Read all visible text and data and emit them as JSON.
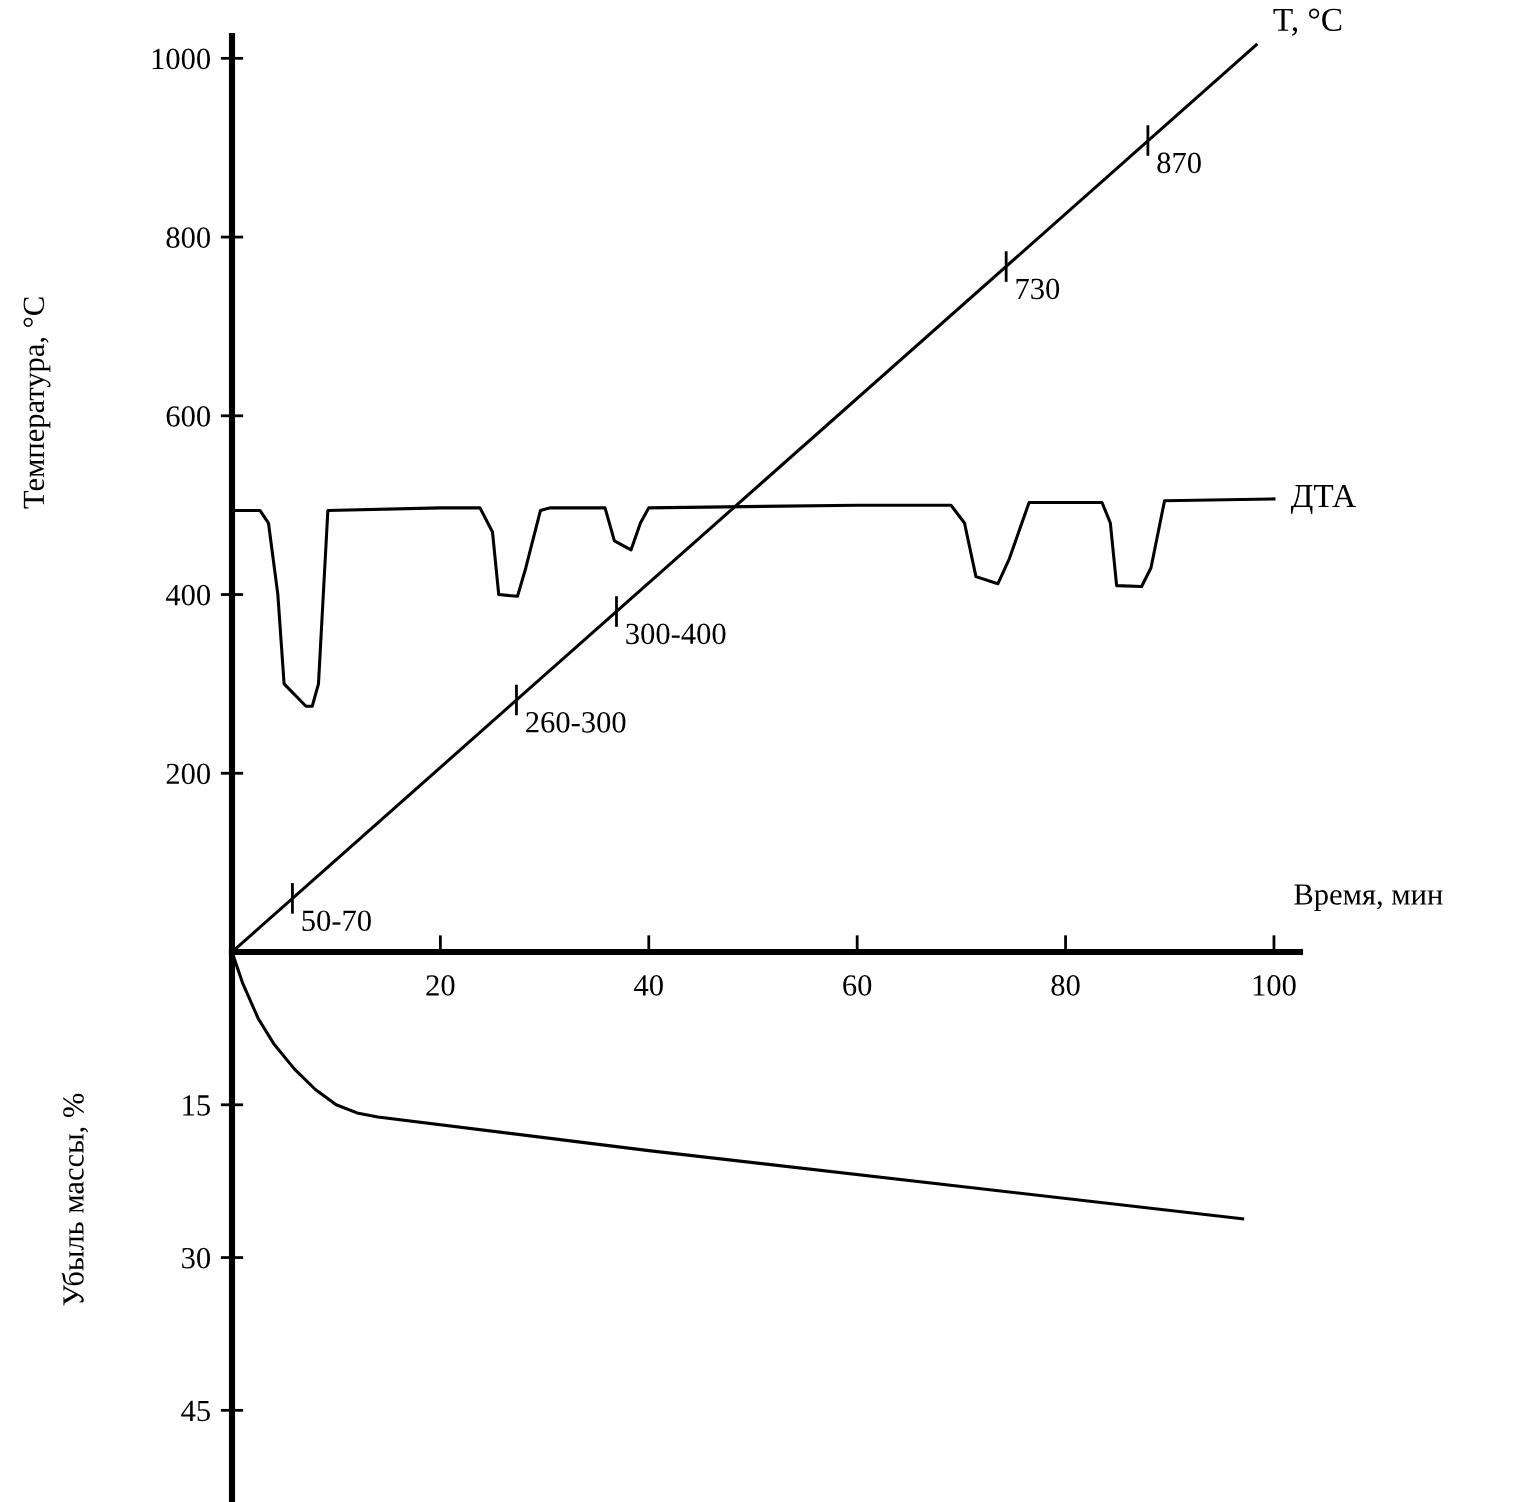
{
  "chart_data": [
    {
      "type": "line",
      "xlabel": "Время, мин",
      "ylabel": "Температура, °C",
      "xlim": [
        0,
        102.5
      ],
      "xticks": [
        20,
        40,
        60,
        80,
        100
      ],
      "ylim": [
        0,
        1025
      ],
      "yticks": [
        200,
        400,
        600,
        800,
        1000
      ],
      "grid": false,
      "legend": false,
      "series": [
        {
          "name": "T, °C",
          "color": "#000000",
          "x": [
            0,
            98.3
          ],
          "values": [
            0,
            1015
          ]
        },
        {
          "name": "ДТА",
          "color": "#000000",
          "x": [
            0,
            2.7,
            3.5,
            4.4,
            5,
            7.1,
            7.7,
            8.3,
            9.2,
            20,
            23.8,
            25,
            25.6,
            27.4,
            28.2,
            29.6,
            30.5,
            35.8,
            36.7,
            38.3,
            39.2,
            40,
            60,
            69,
            70.3,
            71.4,
            73.5,
            74.6,
            76.5,
            83.5,
            84.3,
            84.9,
            87.3,
            88.2,
            89.5,
            100
          ],
          "values": [
            494,
            494,
            480,
            400,
            300,
            275,
            275,
            300,
            494,
            497,
            497,
            470,
            400,
            398,
            430,
            494,
            497,
            497,
            460,
            450,
            480,
            497,
            500,
            500,
            480,
            420,
            412,
            440,
            503,
            503,
            480,
            410,
            409,
            430,
            505,
            507
          ]
        }
      ],
      "annotations": [
        {
          "text": "50-70",
          "x": 5.8,
          "y": 60
        },
        {
          "text": "260-300",
          "x": 27.3,
          "y": 282
        },
        {
          "text": "300-400",
          "x": 36.9,
          "y": 381
        },
        {
          "text": "730",
          "x": 74.3,
          "y": 767
        },
        {
          "text": "870",
          "x": 87.9,
          "y": 908
        }
      ]
    },
    {
      "type": "line",
      "ylabel": "Убыль массы, %",
      "xlim": [
        0,
        102.5
      ],
      "ylim": [
        54,
        0
      ],
      "yticks": [
        15,
        30,
        45
      ],
      "tick_labels": "y",
      "grid": false,
      "legend": false,
      "series": [
        {
          "color": "#000000",
          "x": [
            0,
            1,
            2.5,
            4,
            6,
            8,
            10,
            12,
            14,
            40,
            97
          ],
          "values": [
            0,
            3,
            6.5,
            9,
            11.5,
            13.5,
            15,
            15.8,
            16.2,
            19.5,
            26.2
          ]
        }
      ]
    }
  ]
}
